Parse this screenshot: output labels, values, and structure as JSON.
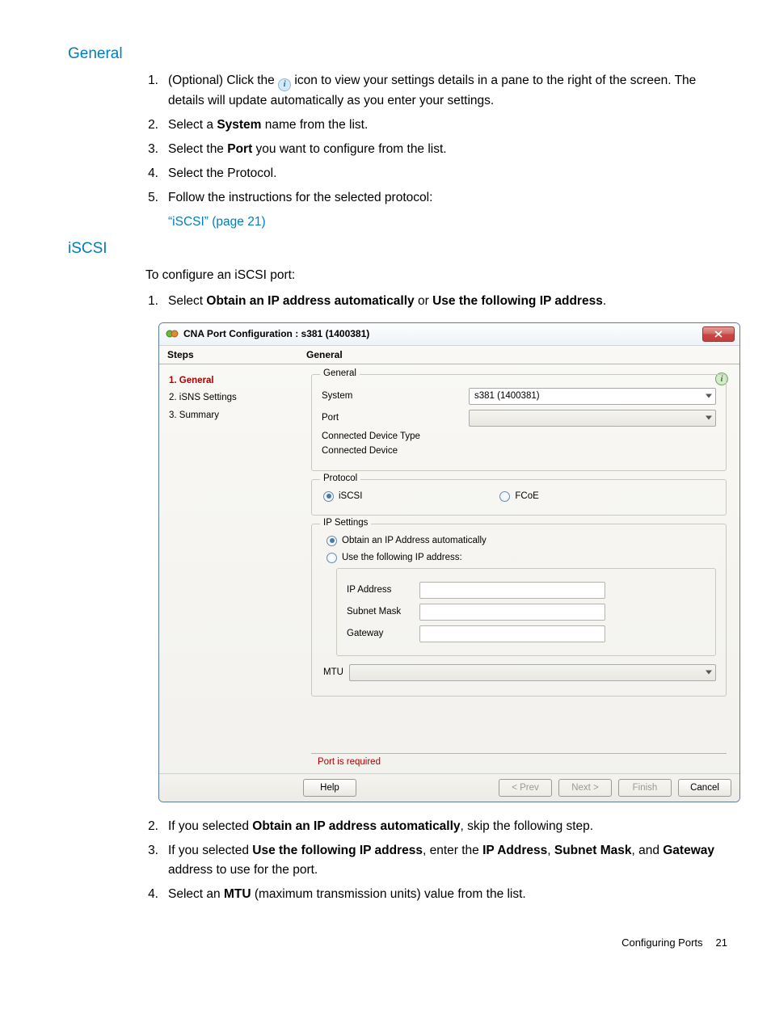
{
  "sections": {
    "general": {
      "heading": "General",
      "steps": [
        {
          "n": "1.",
          "pre": "(Optional) Click the ",
          "post": " icon to view your settings details in a pane to the right of the screen. The details will update automatically as you enter your settings."
        },
        {
          "n": "2.",
          "html": "Select a <b>System</b> name from the list."
        },
        {
          "n": "3.",
          "html": "Select the <b>Port</b> you want to configure from the list."
        },
        {
          "n": "4.",
          "html": "Select the Protocol."
        },
        {
          "n": "5.",
          "html": "Follow the instructions for the selected protocol:"
        }
      ],
      "sublink": "“iSCSI” (page 21)"
    },
    "iscsi": {
      "heading": "iSCSI",
      "intro": "To configure an iSCSI port:",
      "step1_html": "Select <b>Obtain an IP address automatically</b> or <b>Use the following IP address</b>.",
      "after": [
        {
          "n": "2.",
          "html": "If you selected <b>Obtain an IP address automatically</b>, skip the following step."
        },
        {
          "n": "3.",
          "html": "If you selected <b>Use the following IP address</b>, enter the <b>IP Address</b>, <b>Subnet Mask</b>, and <b>Gateway</b> address to use for the port."
        },
        {
          "n": "4.",
          "html": "Select an <b>MTU</b> (maximum transmission units) value from the list."
        }
      ]
    }
  },
  "dialog": {
    "title": "CNA Port Configuration : s381 (1400381)",
    "columns": {
      "steps_header": "Steps",
      "panel_header": "General"
    },
    "steps_list": [
      {
        "label": "1. General",
        "active": true
      },
      {
        "label": "2. iSNS Settings",
        "active": false
      },
      {
        "label": "3. Summary",
        "active": false
      }
    ],
    "general_group": {
      "legend": "General",
      "system_label": "System",
      "system_value": "s381 (1400381)",
      "port_label": "Port",
      "port_value": "",
      "cdt_label": "Connected Device Type",
      "cd_label": "Connected Device"
    },
    "protocol_group": {
      "legend": "Protocol",
      "opt1": "iSCSI",
      "opt1_checked": true,
      "opt2": "FCoE",
      "opt2_checked": false
    },
    "ip_group": {
      "legend": "IP Settings",
      "auto_label": "Obtain an IP Address automatically",
      "auto_checked": true,
      "manual_label": "Use the following IP address:",
      "manual_checked": false,
      "ip_label": "IP Address",
      "mask_label": "Subnet Mask",
      "gw_label": "Gateway",
      "mtu_label": "MTU",
      "mtu_value": ""
    },
    "validation": "Port is required",
    "buttons": {
      "help": "Help",
      "prev": "< Prev",
      "next": "Next >",
      "finish": "Finish",
      "cancel": "Cancel",
      "prev_disabled": true,
      "next_disabled": true,
      "finish_disabled": true
    }
  },
  "footer": {
    "section": "Configuring Ports",
    "page": "21"
  }
}
